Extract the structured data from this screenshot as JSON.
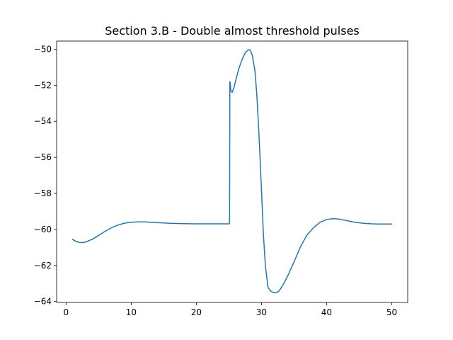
{
  "chart_data": {
    "type": "line",
    "title": "Section 3.B - Double almost threshold pulses",
    "xlabel": "",
    "ylabel": "",
    "xlim": [
      -1.45,
      52.45
    ],
    "ylim": [
      -64.05,
      -49.55
    ],
    "x_ticks": [
      0,
      10,
      20,
      30,
      40,
      50
    ],
    "x_tick_labels": [
      "0",
      "10",
      "20",
      "30",
      "40",
      "50"
    ],
    "y_ticks": [
      -64,
      -62,
      -60,
      -58,
      -56,
      -54,
      -52,
      -50
    ],
    "y_tick_labels": [
      "−64",
      "−62",
      "−60",
      "−58",
      "−56",
      "−54",
      "−52",
      "−50"
    ],
    "grid": false,
    "legend": "none",
    "series": [
      {
        "color": "#1f77b4",
        "x": [
          1.0,
          1.5,
          2.0,
          2.5,
          3.0,
          4.0,
          5.0,
          6.0,
          7.0,
          8.0,
          9.0,
          10.0,
          11.0,
          12.0,
          13.0,
          14.0,
          16.0,
          18.0,
          20.0,
          22.0,
          24.0,
          25.0,
          25.1,
          25.15,
          25.2,
          25.3,
          25.5,
          25.8,
          26.0,
          26.5,
          27.0,
          27.5,
          28.0,
          28.3,
          28.6,
          29.0,
          29.3,
          29.6,
          30.0,
          30.3,
          30.6,
          31.0,
          31.4,
          31.8,
          32.2,
          32.6,
          33.0,
          33.5,
          34.0,
          34.5,
          35.0,
          36.0,
          37.0,
          38.0,
          39.0,
          40.0,
          41.0,
          42.0,
          43.0,
          44.0,
          45.0,
          46.0,
          47.0,
          48.0,
          49.0,
          50.0
        ],
        "y": [
          -60.55,
          -60.66,
          -60.72,
          -60.73,
          -60.7,
          -60.55,
          -60.33,
          -60.1,
          -59.9,
          -59.75,
          -59.65,
          -59.6,
          -59.58,
          -59.58,
          -59.6,
          -59.62,
          -59.66,
          -59.68,
          -59.69,
          -59.69,
          -59.69,
          -59.69,
          -59.68,
          -51.8,
          -51.9,
          -52.3,
          -52.4,
          -52.1,
          -51.8,
          -51.1,
          -50.6,
          -50.2,
          -50.03,
          -50.05,
          -50.35,
          -51.2,
          -52.6,
          -54.6,
          -57.8,
          -60.3,
          -62.0,
          -63.2,
          -63.42,
          -63.49,
          -63.5,
          -63.45,
          -63.25,
          -62.95,
          -62.6,
          -62.2,
          -61.8,
          -60.95,
          -60.3,
          -59.9,
          -59.6,
          -59.45,
          -59.4,
          -59.43,
          -59.5,
          -59.58,
          -59.63,
          -59.67,
          -59.69,
          -59.7,
          -59.7,
          -59.7
        ]
      }
    ]
  }
}
